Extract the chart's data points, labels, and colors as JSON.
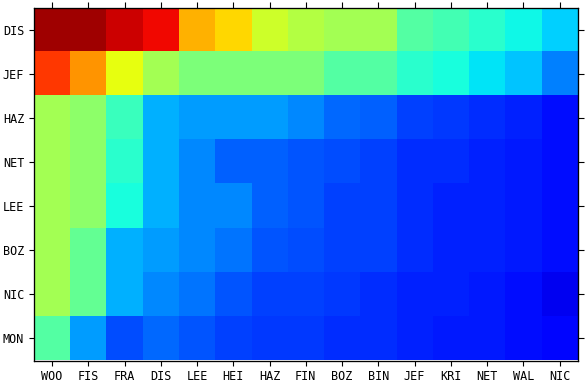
{
  "row_labels": [
    "DIS",
    "JEF",
    "HAZ",
    "NET",
    "LEE",
    "BOZ",
    "NIC",
    "MON"
  ],
  "col_labels": [
    "WOO",
    "FIS",
    "FRA",
    "DIS",
    "LEE",
    "HEI",
    "HAZ",
    "FIN",
    "BOZ",
    "BIN",
    "JEF",
    "KRI",
    "NET",
    "WAL",
    "NIC"
  ],
  "data": [
    [
      0.97,
      0.97,
      0.93,
      0.9,
      0.72,
      0.68,
      0.6,
      0.57,
      0.55,
      0.55,
      0.45,
      0.43,
      0.4,
      0.37,
      0.33
    ],
    [
      0.85,
      0.75,
      0.63,
      0.55,
      0.5,
      0.5,
      0.5,
      0.5,
      0.45,
      0.45,
      0.4,
      0.38,
      0.35,
      0.32,
      0.25
    ],
    [
      0.55,
      0.52,
      0.42,
      0.3,
      0.28,
      0.28,
      0.28,
      0.26,
      0.23,
      0.22,
      0.19,
      0.18,
      0.17,
      0.16,
      0.14
    ],
    [
      0.55,
      0.52,
      0.4,
      0.3,
      0.26,
      0.22,
      0.22,
      0.21,
      0.2,
      0.19,
      0.17,
      0.17,
      0.16,
      0.15,
      0.14
    ],
    [
      0.55,
      0.52,
      0.38,
      0.3,
      0.26,
      0.26,
      0.22,
      0.21,
      0.19,
      0.19,
      0.17,
      0.16,
      0.16,
      0.15,
      0.14
    ],
    [
      0.55,
      0.47,
      0.3,
      0.28,
      0.26,
      0.24,
      0.21,
      0.2,
      0.19,
      0.19,
      0.17,
      0.16,
      0.16,
      0.15,
      0.14
    ],
    [
      0.55,
      0.47,
      0.3,
      0.26,
      0.24,
      0.21,
      0.19,
      0.19,
      0.18,
      0.17,
      0.16,
      0.16,
      0.15,
      0.14,
      0.1
    ],
    [
      0.45,
      0.28,
      0.2,
      0.23,
      0.21,
      0.19,
      0.18,
      0.18,
      0.17,
      0.17,
      0.16,
      0.15,
      0.15,
      0.14,
      0.13
    ]
  ],
  "vmin": 0.0,
  "vmax": 1.0,
  "cmap": "jet",
  "figsize": [
    5.86,
    3.86
  ],
  "dpi": 100
}
